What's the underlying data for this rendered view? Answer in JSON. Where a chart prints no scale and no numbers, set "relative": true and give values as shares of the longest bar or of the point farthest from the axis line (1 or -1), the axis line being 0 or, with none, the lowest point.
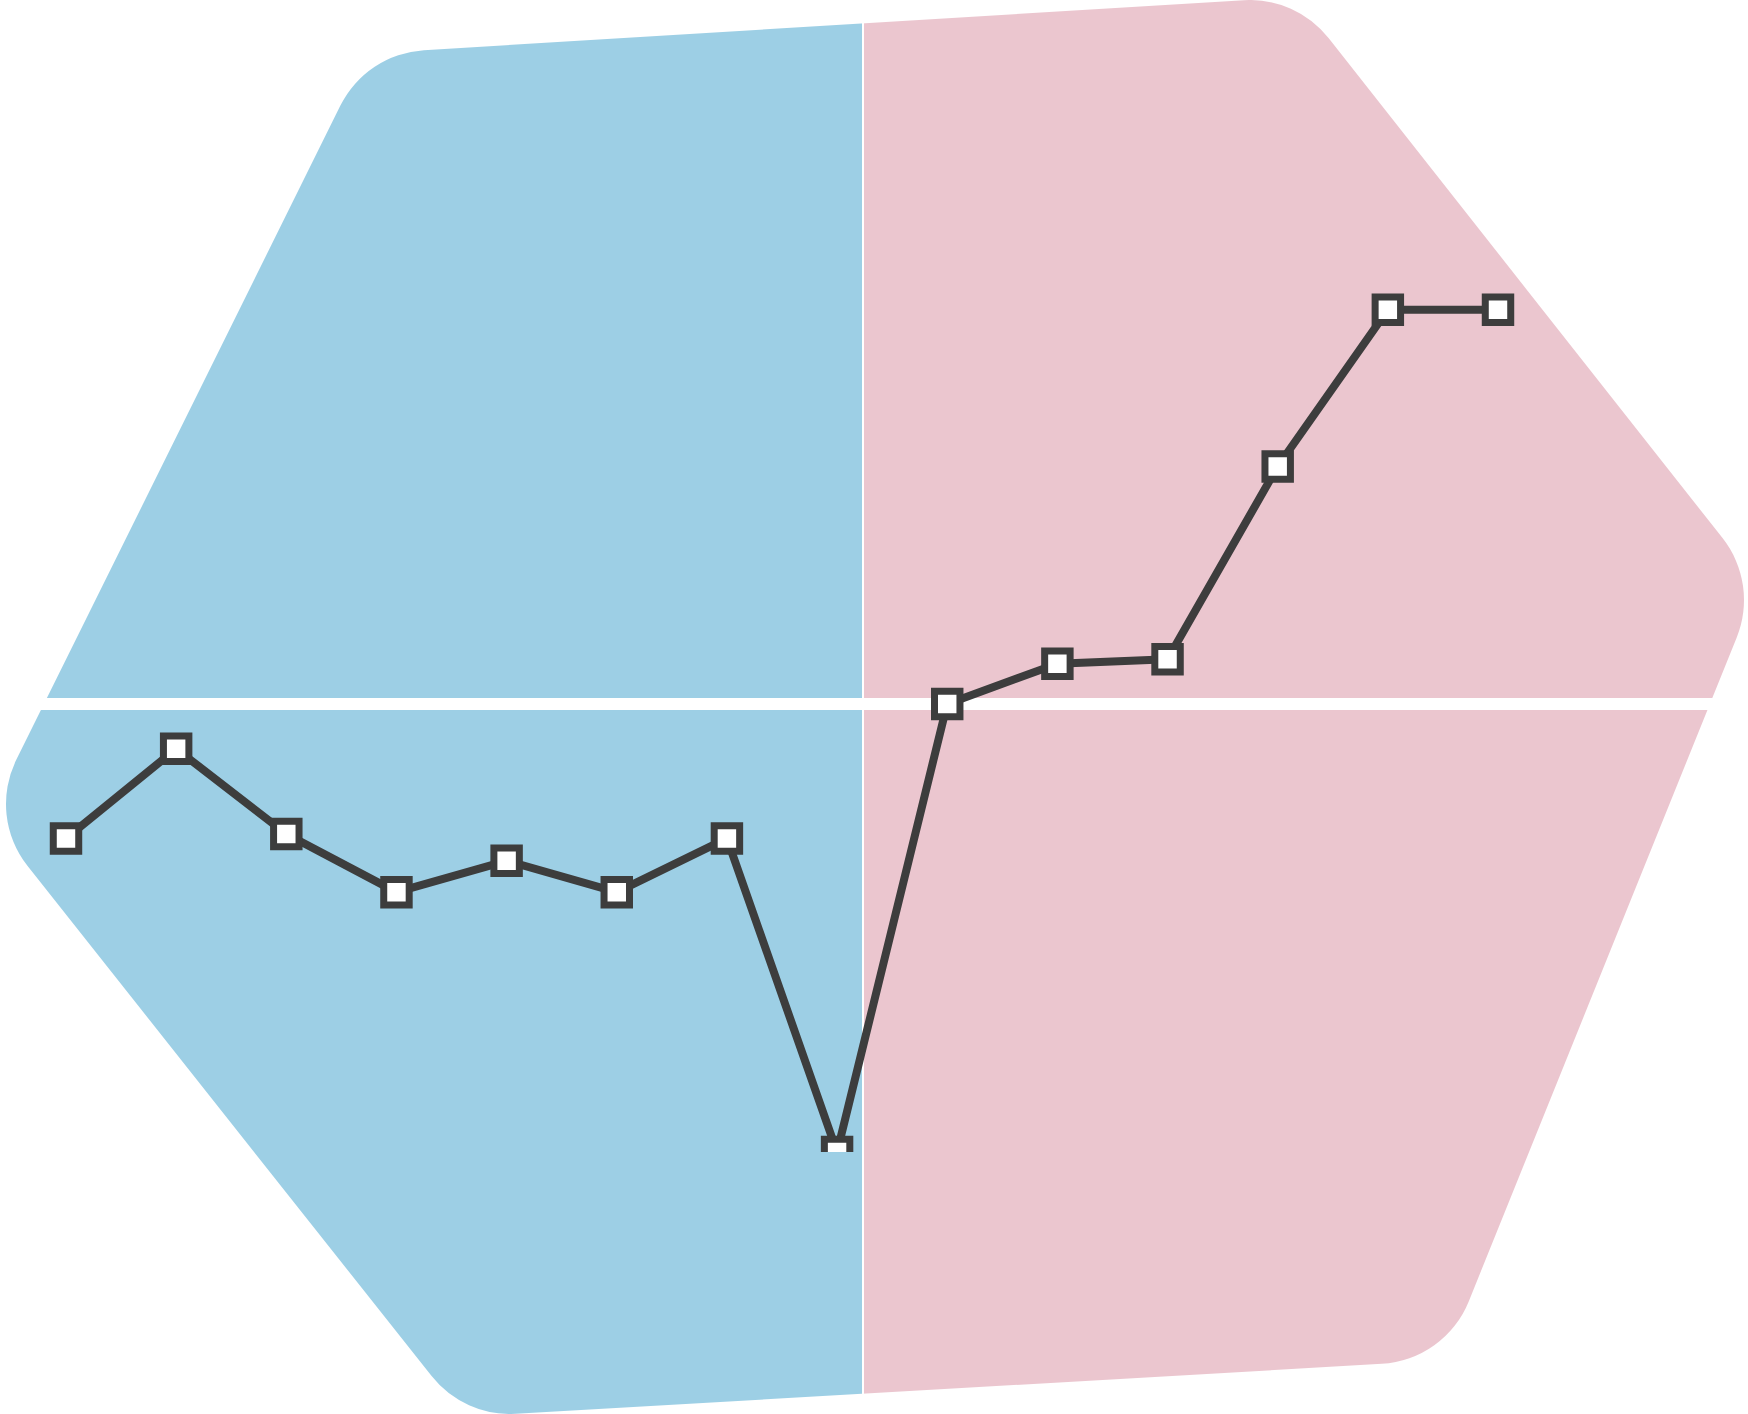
{
  "chart_data": {
    "type": "line",
    "relative": true,
    "marker": "square",
    "line_style": "solid",
    "tick_labels": false,
    "categories": [
      null,
      null,
      null,
      null,
      null,
      null,
      null,
      null,
      null,
      null,
      null,
      null,
      null,
      null
    ],
    "series": [
      {
        "color": "#3d3d3d",
        "values": [
          -0.3,
          -0.1,
          -0.29,
          -0.42,
          -0.35,
          -0.42,
          -0.3,
          -1,
          0,
          0.09,
          0.1,
          0.53,
          0.88,
          0.88
        ]
      }
    ]
  }
}
